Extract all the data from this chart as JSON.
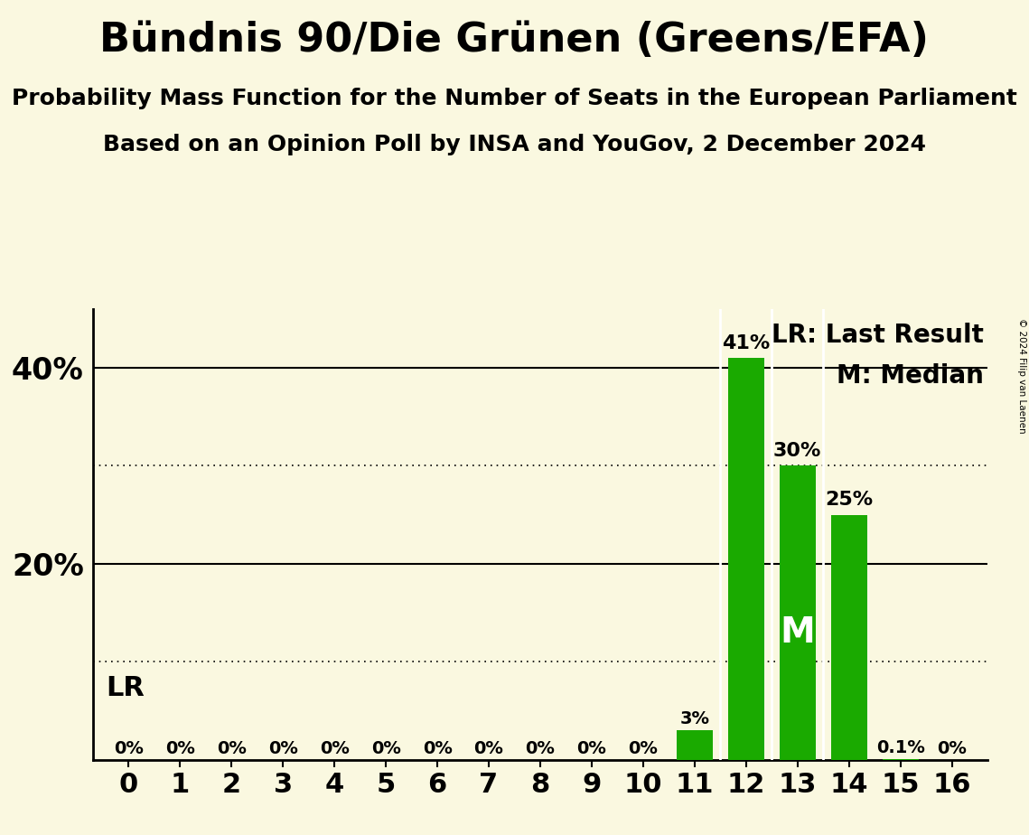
{
  "title": "Bündnis 90/Die Grünen (Greens/EFA)",
  "subtitle1": "Probability Mass Function for the Number of Seats in the European Parliament",
  "subtitle2": "Based on an Opinion Poll by INSA and YouGov, 2 December 2024",
  "copyright": "© 2024 Filip van Laenen",
  "categories": [
    0,
    1,
    2,
    3,
    4,
    5,
    6,
    7,
    8,
    9,
    10,
    11,
    12,
    13,
    14,
    15,
    16
  ],
  "values": [
    0,
    0,
    0,
    0,
    0,
    0,
    0,
    0,
    0,
    0,
    0,
    3,
    41,
    30,
    25,
    0.1,
    0
  ],
  "bar_color": "#1aaa00",
  "background_color": "#faf8e0",
  "median_bar": 13,
  "lr_bar": 11,
  "ylim": [
    0,
    46
  ],
  "solid_lines": [
    20,
    40
  ],
  "dotted_lines": [
    10,
    30
  ],
  "legend_lr": "LR: Last Result",
  "legend_m": "M: Median",
  "lr_label": "LR",
  "median_label": "M",
  "bar_labels": {
    "0": "0%",
    "1": "0%",
    "2": "0%",
    "3": "0%",
    "4": "0%",
    "5": "0%",
    "6": "0%",
    "7": "0%",
    "8": "0%",
    "9": "0%",
    "10": "0%",
    "11": "3%",
    "12": "41%",
    "13": "30%",
    "14": "25%",
    "15": "0.1%",
    "16": "0%"
  },
  "title_fontsize": 32,
  "subtitle_fontsize": 18,
  "tick_fontsize": 22,
  "label_fontsize": 16,
  "ytick_fontsize": 24,
  "lr_fontsize": 22,
  "legend_fontsize": 20
}
